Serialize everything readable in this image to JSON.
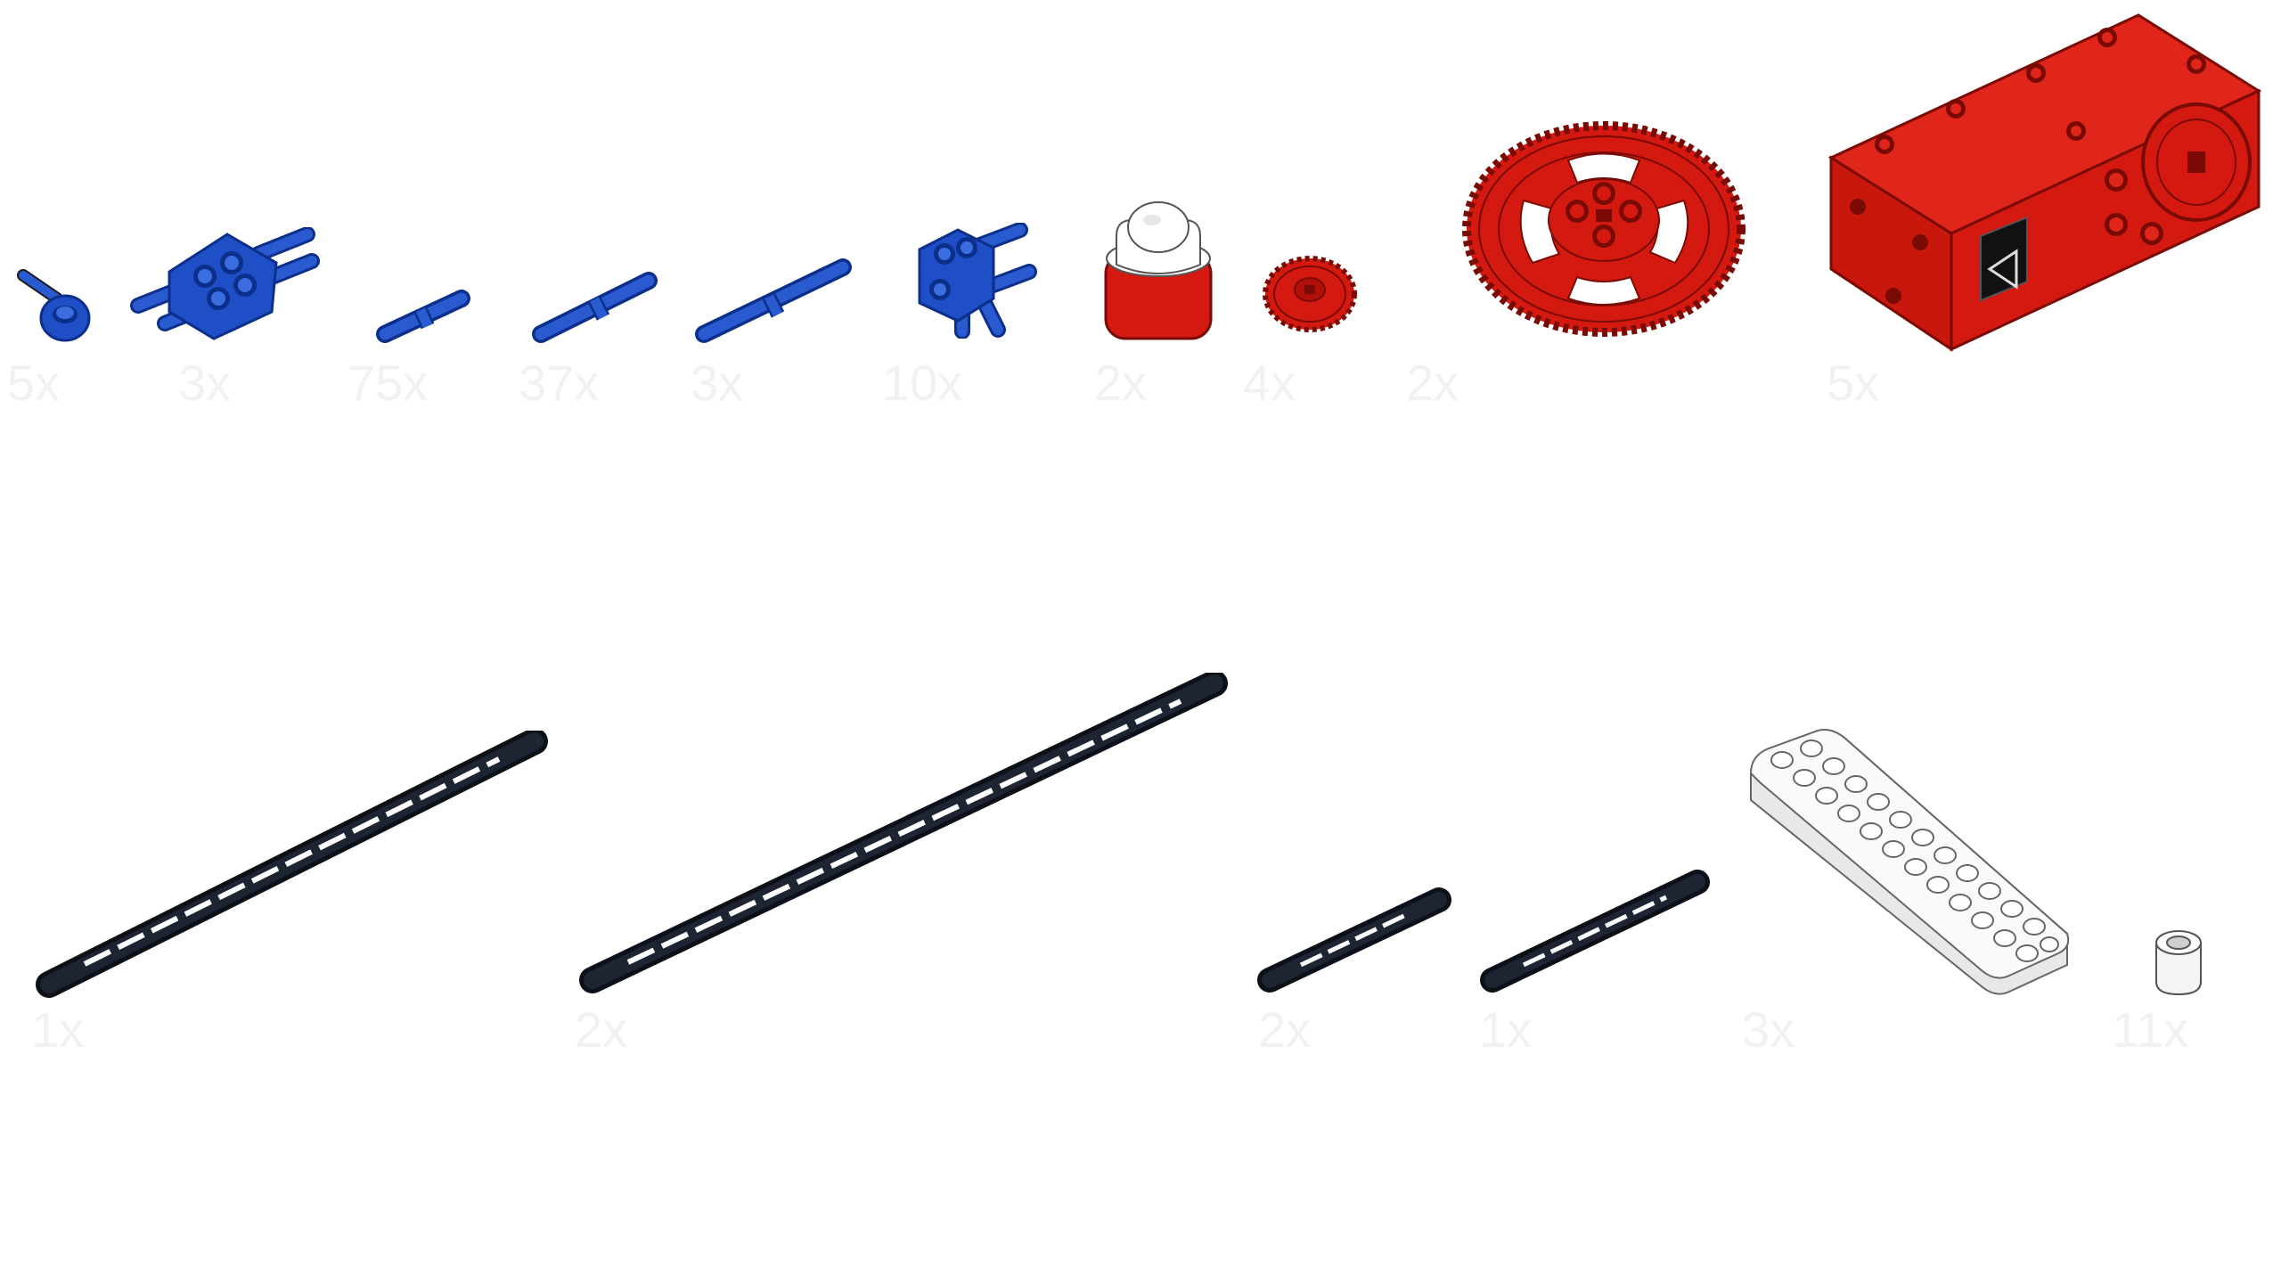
{
  "colors": {
    "blue": "#1f4fc7",
    "blue_dark": "#0b2f8a",
    "red": "#d41a10",
    "red_dark": "#7a0a04",
    "black": "#111722",
    "white_part": "#f4f4f4",
    "outline": "#1a1a1a",
    "label": "#f1f1f1"
  },
  "row1": [
    {
      "name": "axle-pin-connector",
      "qty": "5x",
      "icon": "axle-connector-icon"
    },
    {
      "name": "double-cross-block-with-pins",
      "qty": "3x",
      "icon": "cross-block-icon"
    },
    {
      "name": "short-friction-pin",
      "qty": "75x",
      "icon": "pin-icon"
    },
    {
      "name": "long-pin",
      "qty": "37x",
      "icon": "pin-icon"
    },
    {
      "name": "extra-long-pin",
      "qty": "3x",
      "icon": "pin-icon"
    },
    {
      "name": "pin-connector-block",
      "qty": "10x",
      "icon": "cross-block-icon"
    },
    {
      "name": "ball-joint",
      "qty": "2x",
      "icon": "ball-joint-icon"
    },
    {
      "name": "small-gear",
      "qty": "4x",
      "icon": "gear-icon"
    },
    {
      "name": "large-gear",
      "qty": "2x",
      "icon": "gear-icon"
    },
    {
      "name": "motor",
      "qty": "5x",
      "icon": "motor-icon"
    }
  ],
  "row2": [
    {
      "name": "axle-long-a",
      "qty": "1x",
      "icon": "axle-icon"
    },
    {
      "name": "axle-long-b",
      "qty": "2x",
      "icon": "axle-icon"
    },
    {
      "name": "axle-short-a",
      "qty": "2x",
      "icon": "axle-icon"
    },
    {
      "name": "axle-short-b",
      "qty": "1x",
      "icon": "axle-icon"
    },
    {
      "name": "beam",
      "qty": "3x",
      "icon": "beam-icon"
    },
    {
      "name": "bushing",
      "qty": "11x",
      "icon": "bushing-icon"
    }
  ]
}
